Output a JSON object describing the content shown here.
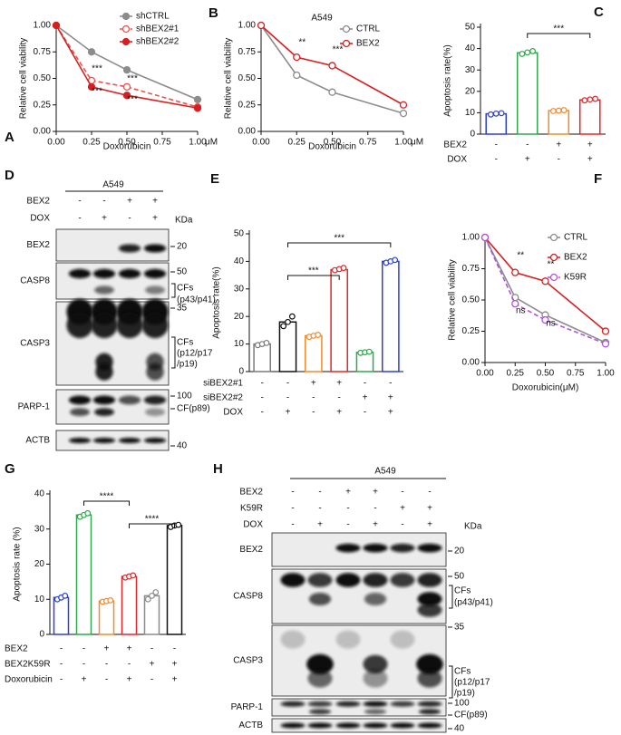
{
  "chart_data": [
    {
      "panel": "A",
      "type": "line",
      "x": [
        0,
        0.25,
        0.5,
        1
      ],
      "xlim": [
        0,
        1
      ],
      "xticks": [
        {
          "value": 0,
          "label": "0.00"
        },
        0.25,
        {
          "value": 0.5,
          "label": "0.50"
        },
        0.75,
        {
          "value": 1,
          "label": "1.00"
        }
      ],
      "x_unit": "μM",
      "ylim": [
        0,
        1
      ],
      "yticks": [
        {
          "value": 0,
          "label": "0.00"
        },
        0.25,
        {
          "value": 0.5,
          "label": "0.50"
        },
        0.75,
        {
          "value": 1,
          "label": "1.00"
        }
      ],
      "xlabel": "Doxorubicin",
      "ylabel": "Relative cell viability",
      "legend": "upper right",
      "series": [
        {
          "name": "shCTRL",
          "color": "#8c8c8c",
          "filled": true,
          "dashed": false,
          "values": [
            1,
            0.75,
            0.58,
            0.3
          ]
        },
        {
          "name": "shBEX2#1",
          "color": "#f0504a",
          "filled": false,
          "dashed": true,
          "values": [
            1,
            0.48,
            0.42,
            0.23
          ]
        },
        {
          "name": "shBEX2#2",
          "color": "#d62020",
          "filled": true,
          "dashed": false,
          "values": [
            1,
            0.42,
            0.34,
            0.22
          ]
        }
      ],
      "annotations": [
        {
          "text": "***",
          "x": 0.25
        },
        {
          "text": "***",
          "x": 0.25
        },
        {
          "text": "***",
          "x": 0.5
        },
        {
          "text": "***",
          "x": 0.5
        }
      ]
    },
    {
      "panel": "B",
      "type": "line",
      "title": "A549",
      "x": [
        0,
        0.25,
        0.5,
        1
      ],
      "xlim": [
        0,
        1
      ],
      "xticks": [
        {
          "value": 0,
          "label": "0.00"
        },
        0.25,
        {
          "value": 0.5,
          "label": "0.50"
        },
        0.75,
        {
          "value": 1,
          "label": "1.00"
        }
      ],
      "x_unit": "μM",
      "ylim": [
        0,
        1
      ],
      "yticks": [
        {
          "value": 0,
          "label": "0.00"
        },
        0.25,
        {
          "value": 0.5,
          "label": "0.50"
        },
        0.75,
        {
          "value": 1,
          "label": "1.00"
        }
      ],
      "xlabel": "Doxorubicin",
      "ylabel": "Relative cell viability",
      "legend": "upper right",
      "series": [
        {
          "name": "CTRL",
          "color": "#8c8c8c",
          "filled": false,
          "dashed": false,
          "values": [
            1,
            0.53,
            0.37,
            0.17
          ]
        },
        {
          "name": "BEX2",
          "color": "#d62020",
          "filled": false,
          "dashed": false,
          "values": [
            1,
            0.7,
            0.62,
            0.25
          ]
        }
      ],
      "annotations": [
        {
          "text": "**",
          "x": 0.25
        },
        {
          "text": "***",
          "x": 0.5
        }
      ]
    },
    {
      "panel": "C",
      "type": "bar",
      "ylim": [
        0,
        50
      ],
      "yticks": [
        0,
        10,
        20,
        30,
        40,
        50
      ],
      "ylabel": "Apoptosis rate(%)",
      "values": [
        9.5,
        38,
        11,
        16
      ],
      "colors": [
        "#2b3fd6",
        "#2ea84a",
        "#f28a2e",
        "#e02828"
      ],
      "points": [
        [
          9.2,
          9.6,
          9.8
        ],
        [
          37.5,
          38.2,
          38.8
        ],
        [
          10.8,
          11,
          11.2
        ],
        [
          15.8,
          16.2,
          16.5
        ]
      ],
      "conditions": [
        {
          "name": "BEX2",
          "signs": [
            "-",
            "-",
            "+",
            "+"
          ]
        },
        {
          "name": "DOX",
          "signs": [
            "-",
            "+",
            "-",
            "+"
          ]
        }
      ],
      "brackets": [
        {
          "from": 1,
          "to": 3,
          "label": "***"
        }
      ]
    },
    {
      "panel": "E",
      "type": "bar",
      "ylim": [
        0,
        50
      ],
      "yticks": [
        0,
        10,
        20,
        30,
        40,
        50
      ],
      "ylabel": "Apoptosis rate(%)",
      "values": [
        10,
        18,
        13,
        37,
        7,
        40
      ],
      "colors": [
        "#7a7a7a",
        "#111111",
        "#f28a2e",
        "#e02828",
        "#2ea84a",
        "#2b3fd6"
      ],
      "points": [
        [
          9.6,
          10,
          10.4
        ],
        [
          16.5,
          18,
          20
        ],
        [
          12.6,
          13,
          13.3
        ],
        [
          36.8,
          37.2,
          37.6
        ],
        [
          6.8,
          7,
          7.2
        ],
        [
          39.5,
          40,
          40.5
        ]
      ],
      "conditions": [
        {
          "name": "siBEX2#1",
          "signs": [
            "-",
            "-",
            "+",
            "+",
            "-",
            "-"
          ]
        },
        {
          "name": "siBEX2#2",
          "signs": [
            "-",
            "-",
            "-",
            "-",
            "+",
            "+"
          ]
        },
        {
          "name": "DOX",
          "signs": [
            "-",
            "+",
            "-",
            "+",
            "-",
            "+"
          ]
        }
      ],
      "brackets": [
        {
          "from": 1,
          "to": 3,
          "label": "***"
        },
        {
          "from": 1,
          "to": 5,
          "label": "***"
        }
      ]
    },
    {
      "panel": "F",
      "type": "line",
      "x": [
        0,
        0.25,
        0.5,
        1
      ],
      "xlim": [
        0,
        1
      ],
      "xticks": [
        {
          "value": 0,
          "label": "0.00"
        },
        0.25,
        {
          "value": 0.5,
          "label": "0.50"
        },
        0.75,
        {
          "value": 1,
          "label": "1.00"
        }
      ],
      "ylim": [
        0,
        1
      ],
      "yticks": [
        {
          "value": 0,
          "label": "0.00"
        },
        0.25,
        {
          "value": 0.5,
          "label": "0.50"
        },
        0.75,
        {
          "value": 1,
          "label": "1.00"
        }
      ],
      "xlabel": "Doxorubicin(μM)",
      "ylabel": "Relative cell viability",
      "legend": "upper right",
      "series": [
        {
          "name": "CTRL",
          "color": "#8c8c8c",
          "filled": false,
          "dashed": false,
          "values": [
            1,
            0.52,
            0.38,
            0.16
          ]
        },
        {
          "name": "BEX2",
          "color": "#d62020",
          "filled": false,
          "dashed": false,
          "values": [
            1,
            0.72,
            0.65,
            0.25
          ]
        },
        {
          "name": "K59R",
          "color": "#b055d8",
          "filled": false,
          "dashed": true,
          "values": [
            1,
            0.47,
            0.34,
            0.15
          ]
        }
      ],
      "annotations": [
        {
          "text": "**",
          "x": 0.25
        },
        {
          "text": "**",
          "x": 0.5
        },
        {
          "text": "ns",
          "x": 0.25
        },
        {
          "text": "ns",
          "x": 0.5
        }
      ]
    },
    {
      "panel": "G",
      "type": "bar",
      "ylim": [
        0,
        40
      ],
      "yticks": [
        0,
        10,
        20,
        30,
        40
      ],
      "ylabel": "Apoptosis rate (%)",
      "values": [
        10.5,
        34,
        9.5,
        16.5,
        11,
        31
      ],
      "colors": [
        "#2b3fd6",
        "#2ea84a",
        "#f28a2e",
        "#e02828",
        "#8c8c8c",
        "#111111"
      ],
      "points": [
        [
          10,
          10.5,
          11
        ],
        [
          33.5,
          34,
          34.5
        ],
        [
          9.3,
          9.5,
          9.7
        ],
        [
          16.2,
          16.5,
          16.8
        ],
        [
          10,
          11,
          12
        ],
        [
          30.6,
          31,
          31.2
        ]
      ],
      "conditions": [
        {
          "name": "BEX2",
          "signs": [
            "-",
            "-",
            "+",
            "+",
            "-",
            "-"
          ]
        },
        {
          "name": "BEX2K59R",
          "signs": [
            "-",
            "-",
            "-",
            "-",
            "+",
            "+"
          ]
        },
        {
          "name": "Doxorubicin",
          "signs": [
            "-",
            "+",
            "-",
            "+",
            "-",
            "+"
          ]
        }
      ],
      "brackets": [
        {
          "from": 1,
          "to": 3,
          "label": "****"
        },
        {
          "from": 3,
          "to": 5,
          "label": "****"
        }
      ]
    }
  ],
  "blots": [
    {
      "panel": "D",
      "title": "A549",
      "unit": "KDa",
      "conditions": [
        {
          "name": "BEX2",
          "signs": [
            "-",
            "-",
            "+",
            "+"
          ]
        },
        {
          "name": "DOX",
          "signs": [
            "-",
            "+",
            "-",
            "+"
          ]
        }
      ],
      "rows": [
        {
          "label": "BEX2",
          "markers": [
            20
          ],
          "notes": []
        },
        {
          "label": "CASP8",
          "markers": [
            50
          ],
          "notes": [
            "CFs",
            "(p43/p41)"
          ]
        },
        {
          "label": "CASP3",
          "markers": [
            35
          ],
          "notes": [
            "CFs",
            "(p12/p17",
            "/p19)"
          ]
        },
        {
          "label": "PARP-1",
          "markers": [
            100
          ],
          "notes": [
            "CF(p89)"
          ]
        },
        {
          "label": "ACTB",
          "markers": [
            40
          ],
          "notes": []
        }
      ]
    },
    {
      "panel": "H",
      "title": "A549",
      "unit": "KDa",
      "conditions": [
        {
          "name": "BEX2",
          "signs": [
            "-",
            "-",
            "+",
            "+",
            "-",
            "-"
          ]
        },
        {
          "name": "K59R",
          "signs": [
            "-",
            "-",
            "-",
            "-",
            "+",
            "+"
          ]
        },
        {
          "name": "DOX",
          "signs": [
            "-",
            "+",
            "-",
            "+",
            "-",
            "+"
          ]
        }
      ],
      "rows": [
        {
          "label": "BEX2",
          "markers": [
            20
          ],
          "notes": []
        },
        {
          "label": "CASP8",
          "markers": [
            50
          ],
          "notes": [
            "CFs",
            "(p43/p41)"
          ]
        },
        {
          "label": "CASP3",
          "markers": [
            35
          ],
          "notes": [
            "CFs",
            "(p12/p17",
            "/p19)"
          ]
        },
        {
          "label": "PARP-1",
          "markers": [
            100
          ],
          "notes": [
            "CF(p89)"
          ]
        },
        {
          "label": "ACTB",
          "markers": [
            40
          ],
          "notes": []
        }
      ]
    }
  ]
}
